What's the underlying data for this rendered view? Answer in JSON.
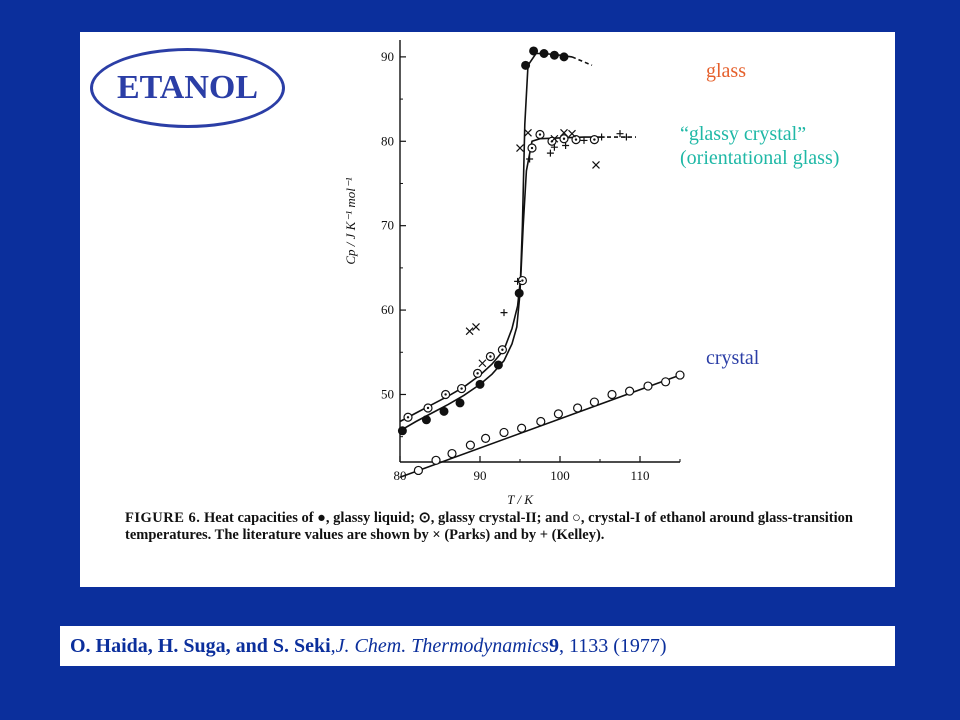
{
  "header": {
    "ellipse_label": "ETANOL"
  },
  "annotations": {
    "glass": "glass",
    "glassy_crystal_line1": "“glassy crystal”",
    "glassy_crystal_line2": "(orientational glass)",
    "crystal": "crystal",
    "colors": {
      "glass": "#e5602c",
      "glassy_crystal": "#1fb8a6",
      "crystal": "#2b3ea6"
    }
  },
  "caption": {
    "lead": "FIGURE 6.",
    "text": "Heat capacities of ●, glassy liquid; ⊙, glassy crystal-II; and ○, crystal-I of ethanol around glass-transition temperatures. The literature values are shown by × (Parks) and by + (Kelley)."
  },
  "citation": {
    "authors": "O. Haida, H. Suga, and S. Seki",
    "sep1": ", ",
    "journal": "J. Chem. Thermodynamics",
    "volume": " 9",
    "pages": ", 1133 (1977)"
  },
  "chart_data": {
    "type": "scatter",
    "title": "",
    "xlabel": "T / K",
    "ylabel": "Cp / J K⁻¹ mol⁻¹",
    "xlim": [
      80,
      115
    ],
    "ylim": [
      42,
      92
    ],
    "xticks": [
      80,
      90,
      100,
      110
    ],
    "yticks": [
      50,
      60,
      70,
      80,
      90
    ],
    "grid": false,
    "series": [
      {
        "marker": "filled-circle",
        "x": [
          80.3,
          83.3,
          85.5,
          87.5,
          90,
          92.3,
          94.9,
          95.7,
          96.7,
          98,
          99.3,
          100.5
        ],
        "y": [
          45.7,
          47,
          48,
          49,
          51.2,
          53.5,
          62,
          89,
          90.7,
          90.4,
          90.2,
          90
        ],
        "curve_x": [
          80,
          82,
          84,
          86,
          88,
          90,
          91.5,
          93,
          94,
          94.6,
          95,
          95.3,
          95.6,
          96,
          97,
          98,
          100,
          101.5
        ],
        "curve_y": [
          45.7,
          46.8,
          47.8,
          48.8,
          49.9,
          51.2,
          52.4,
          54,
          56,
          58,
          62,
          70,
          82,
          89,
          90.4,
          90.4,
          90.2,
          90
        ],
        "extension_x": [
          101.5,
          104
        ],
        "extension_y": [
          90,
          89
        ]
      },
      {
        "marker": "dotted-circle",
        "x": [
          81,
          83.5,
          85.7,
          87.7,
          89.7,
          91.3,
          92.8,
          95.3,
          96.5,
          97.5,
          99,
          100.5,
          102,
          104.3
        ],
        "y": [
          47.3,
          48.4,
          50,
          50.7,
          52.5,
          54.5,
          55.3,
          63.5,
          79.2,
          80.8,
          80,
          80.3,
          80.2,
          80.2
        ],
        "curve_x": [
          80,
          82,
          84,
          86,
          88,
          90,
          91.5,
          93,
          94,
          94.7,
          95.1,
          95.4,
          95.8,
          96.5,
          97.5,
          100,
          103,
          105
        ],
        "curve_y": [
          46.8,
          47.8,
          48.8,
          49.8,
          50.9,
          52.3,
          53.6,
          55.3,
          57.8,
          60.5,
          64,
          70,
          76.5,
          80,
          80.3,
          80.4,
          80.5,
          80.5
        ],
        "extension_x": [
          105,
          109.5
        ],
        "extension_y": [
          80.5,
          80.5
        ]
      },
      {
        "marker": "open-circle",
        "x": [
          82.3,
          84.5,
          86.5,
          88.8,
          90.7,
          93,
          95.2,
          97.6,
          99.8,
          102.2,
          104.3,
          106.5,
          108.7,
          111,
          113.2,
          115
        ],
        "y": [
          41,
          42.2,
          43,
          44,
          44.8,
          45.5,
          46,
          46.8,
          47.7,
          48.4,
          49.1,
          50,
          50.4,
          51,
          51.5,
          52.3
        ],
        "curve_x": [
          80,
          115
        ],
        "curve_y": [
          40.2,
          52.3
        ]
      },
      {
        "marker": "cross",
        "x": [
          88.7,
          89.5,
          90.3,
          95,
          96,
          99.3,
          100.5,
          101.5,
          104.5
        ],
        "y": [
          57.5,
          58,
          53.7,
          79.2,
          81,
          80.3,
          81,
          80.9,
          77.2
        ]
      },
      {
        "marker": "plus",
        "x": [
          93,
          94.7,
          96.2,
          98.8,
          99.3,
          100.7,
          103,
          105.2,
          107.5,
          108.3
        ],
        "y": [
          59.7,
          63.4,
          77.9,
          78.6,
          79.3,
          79.5,
          80.1,
          80.5,
          80.9,
          80.5
        ]
      }
    ]
  }
}
